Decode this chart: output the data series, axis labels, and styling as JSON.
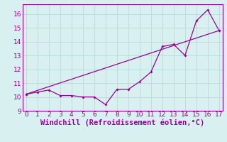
{
  "title": "",
  "xlabel": "Windchill (Refroidissement éolien,°C)",
  "background_color": "#d8f0f0",
  "grid_color": "#b8dede",
  "line_color": "#990099",
  "line1_x": [
    0,
    1,
    2,
    3,
    4,
    5,
    6,
    7,
    8,
    9,
    10,
    11,
    12,
    13,
    14,
    15,
    16,
    17
  ],
  "line1_y": [
    10.2,
    10.35,
    10.5,
    10.1,
    10.1,
    10.0,
    10.0,
    9.45,
    10.55,
    10.55,
    11.1,
    11.8,
    13.65,
    13.8,
    13.0,
    15.5,
    16.3,
    14.8
  ],
  "line2_x": [
    0,
    17
  ],
  "line2_y": [
    10.2,
    14.8
  ],
  "xlim": [
    -0.3,
    17.3
  ],
  "ylim": [
    9,
    16.7
  ],
  "xticks": [
    0,
    1,
    2,
    3,
    4,
    5,
    6,
    7,
    8,
    9,
    10,
    11,
    12,
    13,
    14,
    15,
    16,
    17
  ],
  "yticks": [
    9,
    10,
    11,
    12,
    13,
    14,
    15,
    16
  ],
  "tick_fontsize": 6.5,
  "xlabel_fontsize": 7.5,
  "marker": "D",
  "marker_size": 2.0,
  "line_width": 0.9
}
